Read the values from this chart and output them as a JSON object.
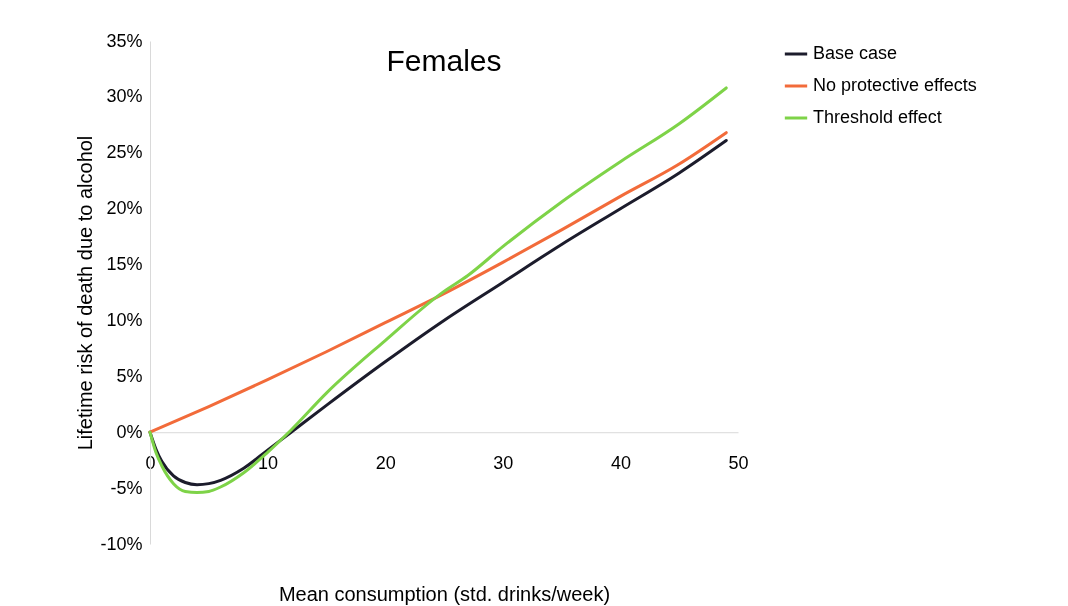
{
  "chart_data": {
    "type": "line",
    "title": "Females",
    "xlabel": "Mean consumption (std. drinks/week)",
    "ylabel": "Lifetime risk of death due to alcohol",
    "xlim": [
      0,
      50
    ],
    "xticks": [
      0,
      10,
      20,
      30,
      40,
      50
    ],
    "ylim": [
      -10,
      35
    ],
    "yticks": [
      {
        "value": -10,
        "label": "-10%"
      },
      {
        "value": -5,
        "label": "-5%"
      },
      {
        "value": 0,
        "label": "0%"
      },
      {
        "value": 5,
        "label": "5%"
      },
      {
        "value": 10,
        "label": "10%"
      },
      {
        "value": 15,
        "label": "15%"
      },
      {
        "value": 20,
        "label": "20%"
      },
      {
        "value": 25,
        "label": "25%"
      },
      {
        "value": 30,
        "label": "30%"
      },
      {
        "value": 35,
        "label": "35%"
      }
    ],
    "grid": false,
    "legend": "right",
    "marker": "none",
    "line_style": "solid",
    "series": [
      {
        "name": "Base case",
        "color": "#1c1c2c",
        "x": [
          0,
          0.5,
          1,
          2,
          3,
          4,
          5,
          6,
          8,
          10,
          12,
          15,
          20,
          25,
          30,
          35,
          40,
          45,
          49
        ],
        "values": [
          0,
          -1.5,
          -2.6,
          -3.9,
          -4.5,
          -4.7,
          -4.6,
          -4.3,
          -3.2,
          -1.6,
          0,
          2.4,
          6.3,
          10,
          13.4,
          16.8,
          20,
          23.2,
          26.1
        ]
      },
      {
        "name": "No protective effects",
        "color": "#f26b3a",
        "x": [
          0,
          5,
          10,
          15,
          20,
          25,
          30,
          35,
          40,
          45,
          49
        ],
        "values": [
          0,
          2.3,
          4.7,
          7.2,
          9.8,
          12.4,
          15.2,
          18.1,
          21.1,
          24,
          26.8
        ]
      },
      {
        "name": "Threshold effect",
        "color": "#7ed348",
        "x": [
          0,
          0.5,
          1,
          2,
          3,
          4,
          5,
          6,
          8,
          10,
          12,
          15,
          20,
          25,
          27,
          30,
          35,
          40,
          45,
          49
        ],
        "values": [
          0,
          -1.8,
          -3,
          -4.6,
          -5.3,
          -5.4,
          -5.3,
          -4.9,
          -3.6,
          -1.8,
          0.2,
          3.5,
          8.2,
          12.6,
          14,
          16.6,
          20.6,
          24.2,
          27.6,
          30.8
        ]
      }
    ]
  }
}
